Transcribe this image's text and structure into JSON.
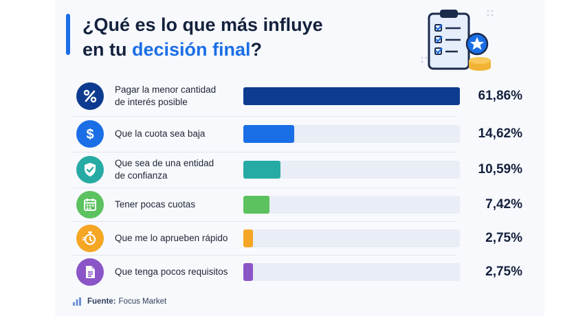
{
  "title": {
    "line1": "¿Qué es lo que más influye",
    "line2_prefix": "en tu ",
    "line2_highlight": "decisión final",
    "line2_suffix": "?"
  },
  "chart_data": {
    "type": "bar",
    "orientation": "horizontal",
    "categories": [
      "Pagar la menor cantidad de interés posible",
      "Que la cuota sea baja",
      "Que sea de una entidad de confianza",
      "Tener pocas cuotas",
      "Que me lo aprueben rápido",
      "Que tenga pocos requisitos"
    ],
    "values": [
      61.86,
      14.62,
      10.59,
      7.42,
      2.75,
      2.75
    ],
    "value_labels": [
      "61,86%",
      "14,62%",
      "10,59%",
      "7,42%",
      "2,75%",
      "2,75%"
    ],
    "colors": [
      "#0d3b8f",
      "#1a6ee6",
      "#26aaa4",
      "#5cc25f",
      "#f5a623",
      "#8a55c7"
    ],
    "xlim": [
      0,
      61.86
    ]
  },
  "rows": [
    {
      "label_l1": "Pagar la menor cantidad",
      "label_l2": "de interés posible",
      "icon": "percent-icon",
      "value_label": "61,86%"
    },
    {
      "label_l1": "Que la cuota sea baja",
      "label_l2": "",
      "icon": "dollar-icon",
      "value_label": "14,62%"
    },
    {
      "label_l1": "Que sea de una entidad",
      "label_l2": "de confianza",
      "icon": "shield-check-icon",
      "value_label": "10,59%"
    },
    {
      "label_l1": "Tener pocas cuotas",
      "label_l2": "",
      "icon": "calendar-icon",
      "value_label": "7,42%"
    },
    {
      "label_l1": "Que me lo aprueben rápido",
      "label_l2": "",
      "icon": "stopwatch-icon",
      "value_label": "2,75%"
    },
    {
      "label_l1": "Que tenga pocos requisitos",
      "label_l2": "",
      "icon": "document-icon",
      "value_label": "2,75%"
    }
  ],
  "source": {
    "label": "Fuente:",
    "value": "Focus Market"
  }
}
